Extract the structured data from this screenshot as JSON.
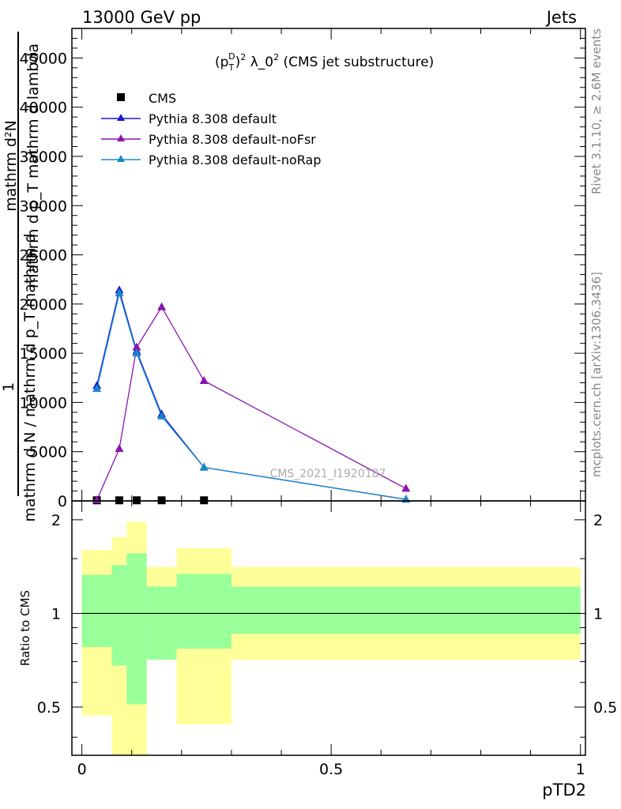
{
  "header": {
    "left": "13000 GeV pp",
    "right": "Jets"
  },
  "side": {
    "rivet": "Rivet 3.1.10, ≥ 2.6M events",
    "mcplots": "mcplots.cern.ch [arXiv:1306.3436]"
  },
  "chart_data": [
    {
      "type": "line",
      "title": "(p_T^D)^2 λ_0^2 (CMS jet substructure)",
      "title_parts": {
        "p": "(p",
        "T": "T",
        "D": "D",
        "close": ")",
        "two": "2",
        "lambda": " λ_0",
        "two2": "2",
        "rest": " (CMS jet substructure)"
      },
      "ylabel_lines": [
        "mathrm d²N",
        "mathrm d p_T mathrm d lambda",
        "1",
        "mathrm d N / mathrm d p_T mathrm d"
      ],
      "xlabel": "",
      "watermark": "CMS_2021_I1920187",
      "xlim": [
        -0.02,
        1.01
      ],
      "ylim": [
        0,
        48000
      ],
      "y_ticks": [
        0,
        5000,
        10000,
        15000,
        20000,
        25000,
        30000,
        35000,
        40000,
        45000
      ],
      "y_tick_labels": [
        "0",
        "5000",
        "10000",
        "15000",
        "20000",
        "25000",
        "30000",
        "35000",
        "40000",
        "45000"
      ],
      "legend_position": "top-left",
      "series": [
        {
          "name": "CMS",
          "color": "#000000",
          "marker": "square",
          "x": [
            0.03,
            0.075,
            0.11,
            0.16,
            0.245,
            0.65
          ],
          "y": [
            60,
            60,
            60,
            60,
            60,
            0
          ]
        },
        {
          "name": "Pythia 8.308 default",
          "color": "#1a1adc",
          "marker": "triangle",
          "x": [
            0.03,
            0.075,
            0.11,
            0.16,
            0.245,
            0.65
          ],
          "y": [
            11700,
            21400,
            15200,
            8800,
            3400,
            150
          ]
        },
        {
          "name": "Pythia 8.308 default-noFsr",
          "color": "#8a14b0",
          "marker": "triangle",
          "x": [
            0.03,
            0.075,
            0.11,
            0.16,
            0.245,
            0.65
          ],
          "y": [
            80,
            5300,
            15600,
            19700,
            12200,
            1250
          ]
        },
        {
          "name": "Pythia 8.308 default-noRap",
          "color": "#1a88c8",
          "marker": "triangle",
          "x": [
            0.03,
            0.075,
            0.11,
            0.16,
            0.245,
            0.65
          ],
          "y": [
            11400,
            21100,
            15000,
            8600,
            3400,
            150
          ]
        }
      ]
    },
    {
      "type": "area",
      "ylabel": "Ratio to CMS",
      "xlabel": "pTD2",
      "xlim": [
        -0.02,
        1.01
      ],
      "ylim": [
        0.35,
        2.3
      ],
      "x_ticks": [
        0,
        0.5,
        1
      ],
      "x_tick_labels": [
        "0",
        "0.5",
        "1"
      ],
      "y_ticks": [
        0.5,
        1,
        2
      ],
      "y_tick_labels": [
        "0.5",
        "1",
        "2"
      ],
      "bins": [
        {
          "x0": 0.0,
          "x1": 0.06,
          "yellow": [
            0.47,
            1.6
          ],
          "green": [
            0.78,
            1.33
          ]
        },
        {
          "x0": 0.06,
          "x1": 0.09,
          "yellow": [
            0.35,
            1.76
          ],
          "green": [
            0.68,
            1.43
          ]
        },
        {
          "x0": 0.09,
          "x1": 0.13,
          "yellow": [
            0.35,
            1.97
          ],
          "green": [
            0.51,
            1.56
          ]
        },
        {
          "x0": 0.13,
          "x1": 0.19,
          "yellow": [
            0.71,
            1.41
          ],
          "green": [
            0.71,
            1.22
          ]
        },
        {
          "x0": 0.19,
          "x1": 0.3,
          "yellow": [
            0.44,
            1.62
          ],
          "green": [
            0.77,
            1.34
          ]
        },
        {
          "x0": 0.3,
          "x1": 1.0,
          "yellow": [
            0.71,
            1.41
          ],
          "green": [
            0.86,
            1.22
          ]
        }
      ]
    }
  ]
}
